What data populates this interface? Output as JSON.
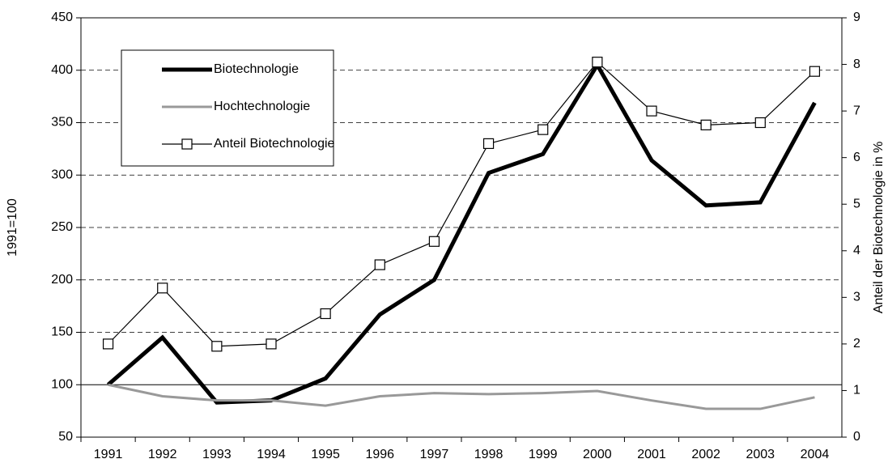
{
  "chart_data": {
    "type": "line",
    "ylabel": "1991=100",
    "y2label": "Anteil der Biotechnologie in %",
    "categories": [
      "1991",
      "1992",
      "1993",
      "1994",
      "1995",
      "1996",
      "1997",
      "1998",
      "1999",
      "2000",
      "2001",
      "2002",
      "2003",
      "2004"
    ],
    "series": [
      {
        "name": "Biotechnologie",
        "color": "#000000",
        "values": [
          100,
          145,
          83,
          85,
          106,
          167,
          200,
          302,
          320,
          405,
          314,
          271,
          274,
          369
        ]
      },
      {
        "name": "Hochtechnologie",
        "color": "#999999",
        "values": [
          100,
          89,
          85,
          85,
          80,
          89,
          92,
          91,
          92,
          94,
          85,
          77,
          77,
          88
        ]
      },
      {
        "name": "Anteil Biotechnologie",
        "color": "#000000",
        "axis": "y2",
        "marker": "square",
        "values": [
          2.0,
          3.2,
          1.95,
          2.0,
          2.65,
          3.7,
          4.2,
          6.3,
          6.6,
          8.05,
          7.0,
          6.7,
          6.75,
          7.85
        ]
      }
    ],
    "ylim": [
      50,
      450
    ],
    "yticks": [
      50,
      100,
      150,
      200,
      250,
      300,
      350,
      400,
      450
    ],
    "y2lim": [
      0,
      9
    ],
    "y2ticks": [
      0,
      1,
      2,
      3,
      4,
      5,
      6,
      7,
      8,
      9
    ],
    "baseline": 100,
    "grid": true,
    "legend": "upper left"
  }
}
